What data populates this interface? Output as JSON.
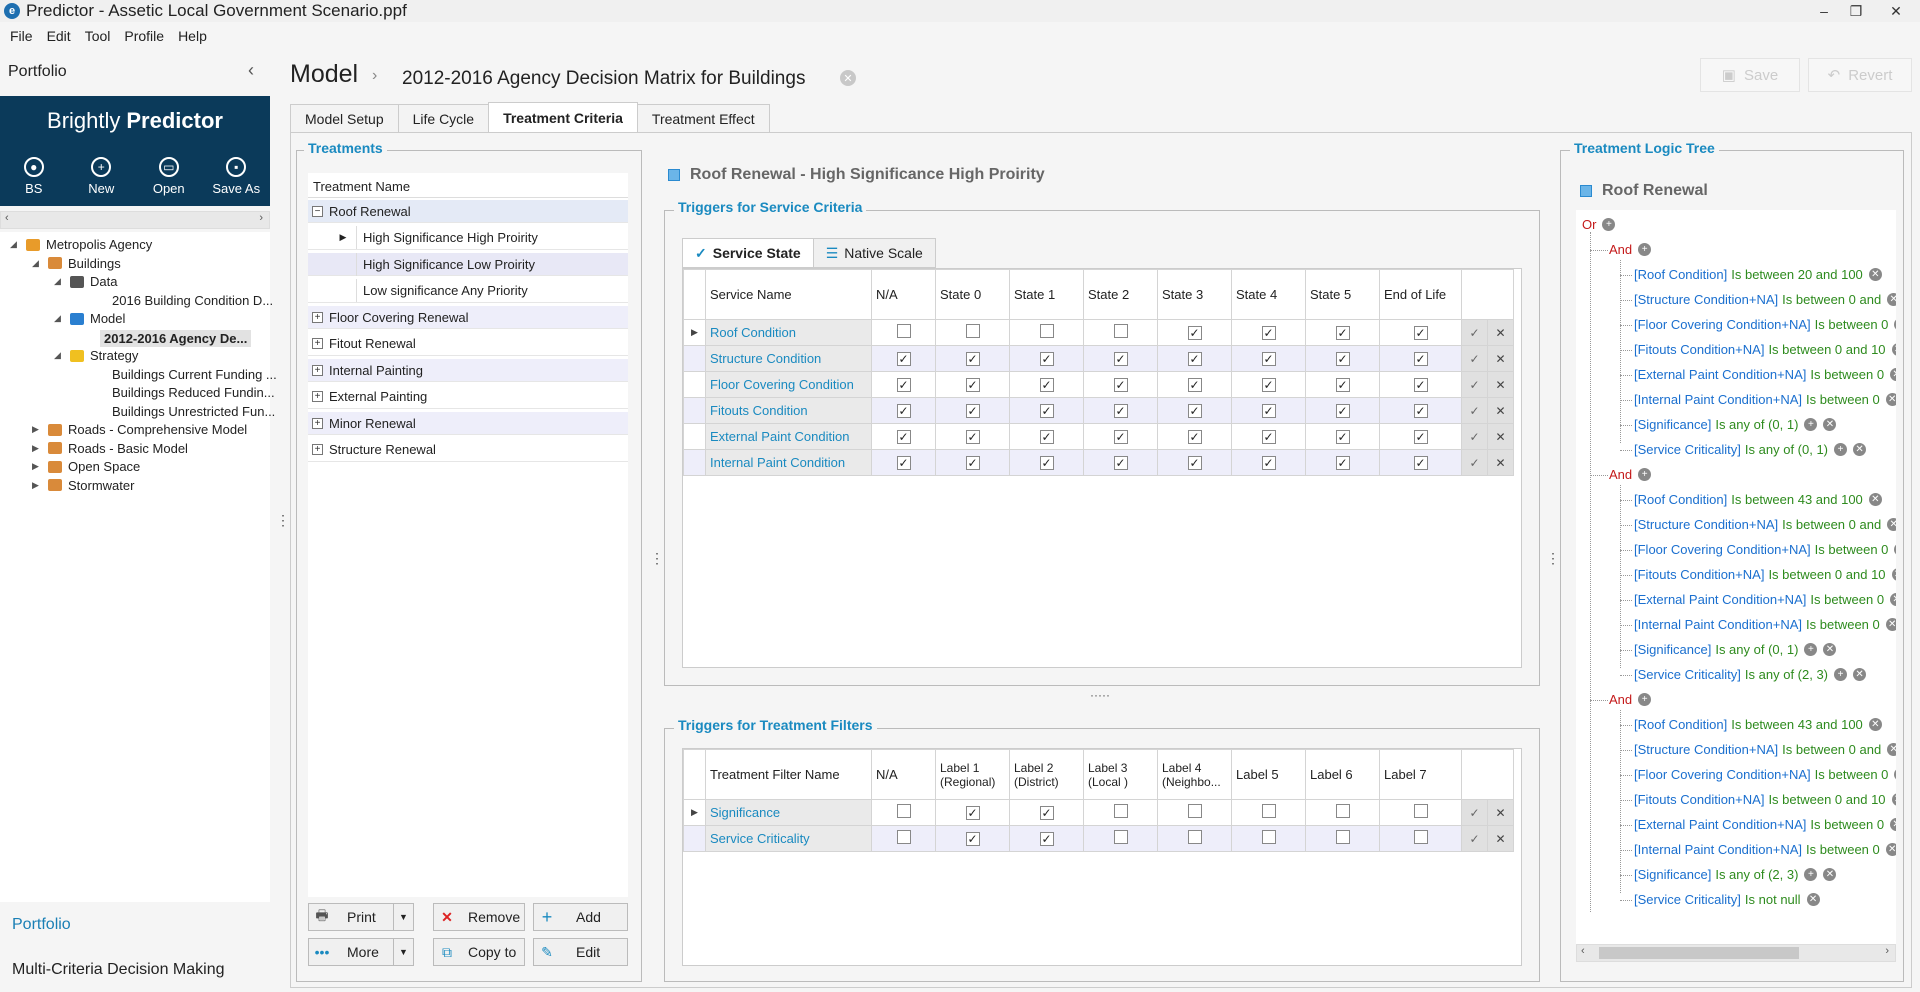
{
  "window": {
    "title": "Predictor - Assetic Local Government Scenario.ppf",
    "app_icon": "e"
  },
  "menu": [
    "File",
    "Edit",
    "Tool",
    "Profile",
    "Help"
  ],
  "left": {
    "header": "Portfolio",
    "brand_light": "Brightly",
    "brand_bold": "Predictor",
    "toolbar": [
      {
        "label": "BS",
        "icon": "user-icon"
      },
      {
        "label": "New",
        "icon": "plus-circle-icon"
      },
      {
        "label": "Open",
        "icon": "folder-open-icon"
      },
      {
        "label": "Save As",
        "icon": "save-icon"
      }
    ],
    "tree": [
      {
        "label": "Metropolis Agency",
        "level": 0,
        "expander": "◢",
        "icon": "agency"
      },
      {
        "label": "Buildings",
        "level": 1,
        "expander": "◢",
        "icon": "portfolio"
      },
      {
        "label": "Data",
        "level": 2,
        "expander": "◢",
        "icon": "data"
      },
      {
        "label": "2016 Building Condition D...",
        "level": 3,
        "expander": "",
        "icon": ""
      },
      {
        "label": "Model",
        "level": 2,
        "expander": "◢",
        "icon": "model"
      },
      {
        "label": "2012-2016 Agency De...",
        "level": 3,
        "expander": "",
        "icon": "",
        "selected": true
      },
      {
        "label": "Strategy",
        "level": 2,
        "expander": "◢",
        "icon": "strategy"
      },
      {
        "label": "Buildings Current Funding ...",
        "level": 3,
        "expander": "",
        "icon": ""
      },
      {
        "label": "Buildings Reduced Fundin...",
        "level": 3,
        "expander": "",
        "icon": ""
      },
      {
        "label": "Buildings Unrestricted Fun...",
        "level": 3,
        "expander": "",
        "icon": ""
      },
      {
        "label": "Roads - Comprehensive Model",
        "level": 1,
        "expander": "▶",
        "icon": "portfolio"
      },
      {
        "label": "Roads - Basic Model",
        "level": 1,
        "expander": "▶",
        "icon": "portfolio"
      },
      {
        "label": "Open Space",
        "level": 1,
        "expander": "▶",
        "icon": "portfolio"
      },
      {
        "label": "Stormwater",
        "level": 1,
        "expander": "▶",
        "icon": "portfolio"
      }
    ],
    "bottom_links": [
      "Portfolio",
      "Multi-Criteria Decision Making"
    ]
  },
  "header": {
    "breadcrumb_root": "Model",
    "title": "2012-2016 Agency Decision Matrix for Buildings",
    "save": "Save",
    "revert": "Revert"
  },
  "tabs": [
    "Model Setup",
    "Life Cycle",
    "Treatment Criteria",
    "Treatment Effect"
  ],
  "treatments": {
    "title": "Treatments",
    "column": "Treatment Name",
    "rows": [
      {
        "label": "Roof Renewal",
        "expanded": true
      },
      {
        "label": "High Significance High Proirity",
        "child": true
      },
      {
        "label": "High Significance Low Proirity",
        "child": true
      },
      {
        "label": "Low significance Any Priority",
        "child": true
      },
      {
        "label": "Floor Covering Renewal"
      },
      {
        "label": "Fitout Renewal"
      },
      {
        "label": "Internal Painting"
      },
      {
        "label": "External Painting"
      },
      {
        "label": "Minor Renewal"
      },
      {
        "label": "Structure  Renewal"
      }
    ],
    "buttons": {
      "print": "Print",
      "remove": "Remove",
      "add": "Add",
      "more": "More",
      "copy": "Copy to",
      "edit": "Edit"
    }
  },
  "section_title": "Roof Renewal - High Significance High Proirity",
  "service": {
    "title": "Triggers for Service Criteria",
    "subtabs": [
      "Service State",
      "Native Scale"
    ],
    "columns": [
      "Service Name",
      "N/A",
      "State 0",
      "State 1",
      "State 2",
      "State 3",
      "State 4",
      "State 5",
      "End of Life"
    ],
    "rows": [
      {
        "name": "Roof Condition",
        "checks": [
          false,
          false,
          false,
          false,
          true,
          true,
          true,
          true
        ]
      },
      {
        "name": "Structure Condition",
        "checks": [
          true,
          true,
          true,
          true,
          true,
          true,
          true,
          true
        ]
      },
      {
        "name": "Floor Covering Condition",
        "checks": [
          true,
          true,
          true,
          true,
          true,
          true,
          true,
          true
        ]
      },
      {
        "name": "Fitouts Condition",
        "checks": [
          true,
          true,
          true,
          true,
          true,
          true,
          true,
          true
        ]
      },
      {
        "name": "External Paint Condition",
        "checks": [
          true,
          true,
          true,
          true,
          true,
          true,
          true,
          true
        ]
      },
      {
        "name": "Internal Paint Condition",
        "checks": [
          true,
          true,
          true,
          true,
          true,
          true,
          true,
          true
        ]
      }
    ]
  },
  "filters": {
    "title": "Triggers for Treatment Filters",
    "columns": [
      "Treatment Filter Name",
      "N/A",
      "Label 1 (Regional)",
      "Label 2 (District)",
      "Label 3 (Local )",
      "Label 4 (Neighbo...",
      "Label 5",
      "Label 6",
      "Label 7"
    ],
    "rows": [
      {
        "name": "Significance",
        "checks": [
          false,
          true,
          true,
          false,
          false,
          false,
          false,
          false
        ]
      },
      {
        "name": "Service Criticality",
        "checks": [
          false,
          true,
          true,
          false,
          false,
          false,
          false,
          false
        ]
      }
    ]
  },
  "logic": {
    "title": "Treatment Logic Tree",
    "root": "Roof Renewal",
    "or": "Or",
    "and": "And",
    "groups": [
      [
        [
          "[Roof Condition]",
          "Is between 20 and 100"
        ],
        [
          "[Structure Condition+NA]",
          "Is between 0 and"
        ],
        [
          "[Floor Covering Condition+NA]",
          "Is between 0"
        ],
        [
          "[Fitouts Condition+NA]",
          "Is between 0 and 10"
        ],
        [
          "[External Paint Condition+NA]",
          "Is between 0"
        ],
        [
          "[Internal Paint Condition+NA]",
          "Is between 0"
        ],
        [
          "[Significance]",
          "Is any of (0, 1)"
        ],
        [
          "[Service Criticality]",
          "Is any of (0, 1)"
        ]
      ],
      [
        [
          "[Roof Condition]",
          "Is between 43 and 100"
        ],
        [
          "[Structure Condition+NA]",
          "Is between 0 and"
        ],
        [
          "[Floor Covering Condition+NA]",
          "Is between 0"
        ],
        [
          "[Fitouts Condition+NA]",
          "Is between 0 and 10"
        ],
        [
          "[External Paint Condition+NA]",
          "Is between 0"
        ],
        [
          "[Internal Paint Condition+NA]",
          "Is between 0"
        ],
        [
          "[Significance]",
          "Is any of (0, 1)"
        ],
        [
          "[Service Criticality]",
          "Is any of (2, 3)"
        ]
      ],
      [
        [
          "[Roof Condition]",
          "Is between 43 and 100"
        ],
        [
          "[Structure Condition+NA]",
          "Is between 0 and"
        ],
        [
          "[Floor Covering Condition+NA]",
          "Is between 0"
        ],
        [
          "[Fitouts Condition+NA]",
          "Is between 0 and 10"
        ],
        [
          "[External Paint Condition+NA]",
          "Is between 0"
        ],
        [
          "[Internal Paint Condition+NA]",
          "Is between 0"
        ],
        [
          "[Significance]",
          "Is any of (2, 3)"
        ],
        [
          "[Service Criticality]",
          "Is not null"
        ]
      ]
    ]
  }
}
